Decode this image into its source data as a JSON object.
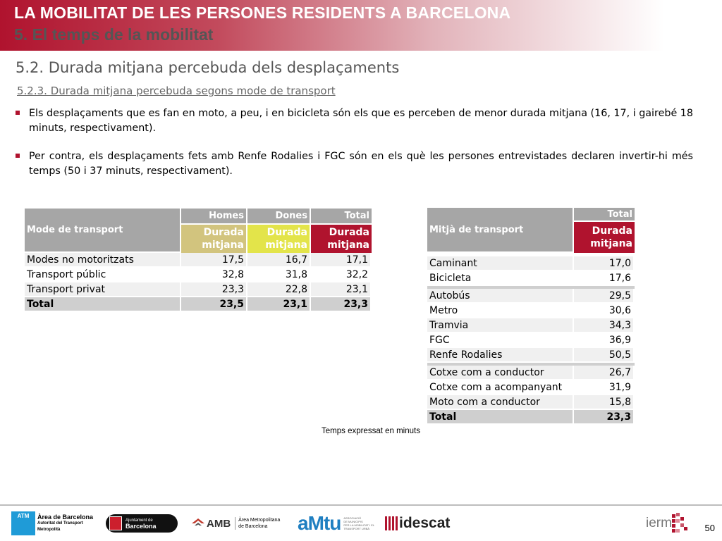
{
  "header": {
    "title": "LA MOBILITAT DE LES PERSONES RESIDENTS A BARCELONA",
    "subtitle": "5. El temps de la mobilitat"
  },
  "section": "5.2. Durada mitjana percebuda dels desplaçaments",
  "subsection": "5.2.3. Durada mitjana percebuda segons mode de transport",
  "bullets": [
    "Els desplaçaments que es fan en moto, a peu, i en bicicleta són els que es perceben de menor durada mitjana (16, 17, i gairebé 18 minuts, respectivament).",
    "Per contra, els desplaçaments fets amb Renfe Rodalies i FGC són en els què les persones entrevistades declaren invertir-hi més temps (50 i 37 minuts, respectivament)."
  ],
  "table1": {
    "label_header": "Mode de transport",
    "col_headers": [
      "Homes",
      "Dones",
      "Total"
    ],
    "sub_headers": [
      "Durada mitjana",
      "Durada mitjana",
      "Durada mitjana"
    ],
    "rows": [
      {
        "label": "Modes no motoritzats",
        "values": [
          "17,5",
          "16,7",
          "17,1"
        ]
      },
      {
        "label": "Transport públic",
        "values": [
          "32,8",
          "31,8",
          "32,2"
        ]
      },
      {
        "label": "Transport privat",
        "values": [
          "23,3",
          "22,8",
          "23,1"
        ]
      },
      {
        "label": "Total",
        "values": [
          "23,5",
          "23,1",
          "23,3"
        ]
      }
    ]
  },
  "table2": {
    "label_header": "Mitjà de transport",
    "col_header": "Total",
    "sub_header": "Durada mitjana",
    "groups": [
      [
        {
          "label": "Caminant",
          "value": "17,0"
        },
        {
          "label": "Bicicleta",
          "value": "17,6"
        }
      ],
      [
        {
          "label": "Autobús",
          "value": "29,5"
        },
        {
          "label": "Metro",
          "value": "30,6"
        },
        {
          "label": "Tramvia",
          "value": "34,3"
        },
        {
          "label": "FGC",
          "value": "36,9"
        },
        {
          "label": "Renfe Rodalies",
          "value": "50,5"
        }
      ],
      [
        {
          "label": "Cotxe com a conductor",
          "value": "26,7"
        },
        {
          "label": "Cotxe com a acompanyant",
          "value": "31,9"
        },
        {
          "label": "Moto com a conductor",
          "value": "15,8"
        }
      ]
    ],
    "total": {
      "label": "Total",
      "value": "23,3"
    }
  },
  "note": "Temps expressat en minuts",
  "footer": {
    "logos": {
      "atm": {
        "badge": "ATM",
        "line1": "Àrea de Barcelona",
        "line2": "Autoritat del Transport",
        "line3": "Metropolità"
      },
      "ajuntament": {
        "line1": "Ajuntament de",
        "line2": "Barcelona"
      },
      "amb": {
        "short": "AMB",
        "line1": "Àrea Metropolitana",
        "line2": "de Barcelona"
      },
      "amtu": {
        "name": "aMtu",
        "line1": "ASSOCIACIÓ",
        "line2": "DE MUNICIPIS",
        "line3": "PER LA MOBILITAT I EL",
        "line4": "TRANSPORT URBÀ"
      },
      "idescat": {
        "name": "idescat"
      },
      "iermb": {
        "name": "ierm"
      }
    },
    "page_number": "50",
    "colors": {
      "brand": "#b0132e"
    }
  }
}
